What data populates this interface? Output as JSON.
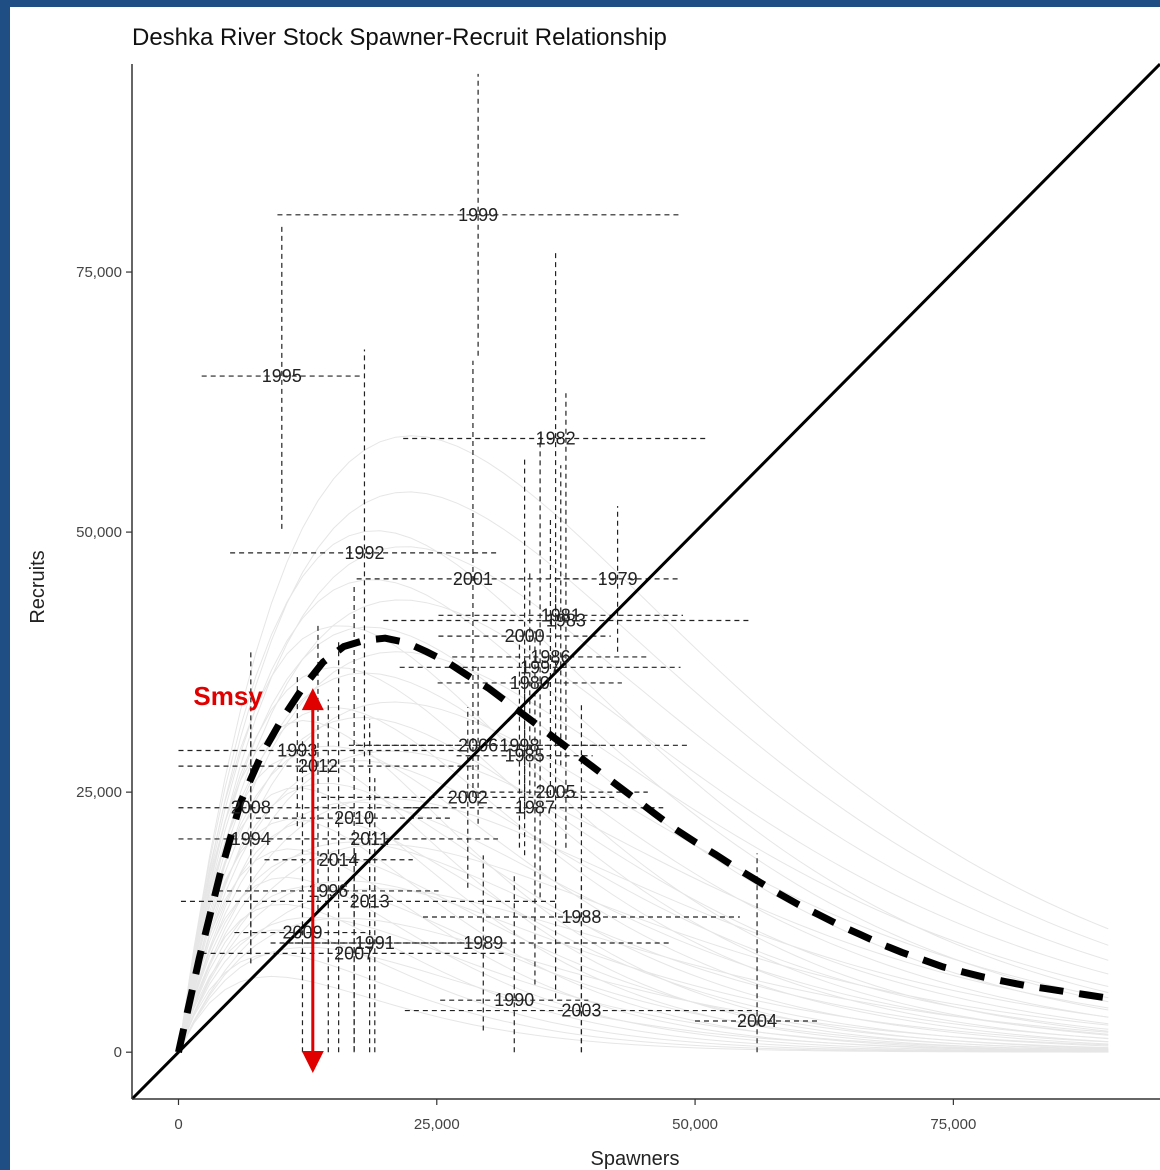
{
  "chart_data": {
    "type": "scatter",
    "title": "Deshka River Stock Spawner-Recruit Relationship",
    "xlabel": "Spawners",
    "ylabel": "Recruits",
    "xlim": [
      -4500,
      95000
    ],
    "ylim": [
      -4500,
      95000
    ],
    "x_ticks": [
      0,
      25000,
      50000,
      75000
    ],
    "x_tick_labels": [
      "0",
      "25,000",
      "50,000",
      "75,000"
    ],
    "y_ticks": [
      0,
      25000,
      50000,
      75000
    ],
    "y_tick_labels": [
      "0",
      "25,000",
      "50,000",
      "75,000"
    ],
    "grid": false,
    "replacement_line": {
      "label": "",
      "slope": 1
    },
    "median_curve": {
      "style": "dashed",
      "x": [
        0,
        2000,
        4000,
        6000,
        8000,
        10000,
        12000,
        14000,
        16000,
        18000,
        20000,
        22000,
        24000,
        26000,
        28000,
        30000,
        32000,
        34000,
        36000,
        38000,
        40000,
        42000,
        44000,
        46000,
        48000,
        50000,
        52000,
        54000,
        56000,
        58000,
        60000,
        62000,
        64000,
        66000,
        68000,
        70000,
        72000,
        74000,
        76000,
        78000,
        80000,
        82000,
        84000,
        86000,
        88000,
        90000
      ],
      "y": [
        0,
        9000,
        17000,
        24000,
        28500,
        32000,
        35000,
        37500,
        39000,
        39600,
        39800,
        39400,
        38500,
        37500,
        36200,
        35000,
        33500,
        32000,
        30500,
        29000,
        27500,
        26000,
        24500,
        23000,
        21500,
        20200,
        19000,
        17700,
        16500,
        15300,
        14200,
        13200,
        12200,
        11300,
        10400,
        9600,
        8900,
        8200,
        7700,
        7200,
        6800,
        6400,
        6100,
        5800,
        5500,
        5200
      ]
    },
    "points": [
      {
        "year": "1979",
        "x": 42500,
        "y": 45500
      },
      {
        "year": "1980",
        "x": 34000,
        "y": 35500
      },
      {
        "year": "1981",
        "x": 37000,
        "y": 42000
      },
      {
        "year": "1982",
        "x": 36500,
        "y": 59000
      },
      {
        "year": "1983",
        "x": 37500,
        "y": 41500
      },
      {
        "year": "1985",
        "x": 33500,
        "y": 28500
      },
      {
        "year": "1986",
        "x": 36000,
        "y": 38000
      },
      {
        "year": "1987",
        "x": 34500,
        "y": 23500
      },
      {
        "year": "1988",
        "x": 39000,
        "y": 13000
      },
      {
        "year": "1989",
        "x": 29500,
        "y": 10500
      },
      {
        "year": "1990",
        "x": 32500,
        "y": 5000
      },
      {
        "year": "1991",
        "x": 19000,
        "y": 10500
      },
      {
        "year": "1992",
        "x": 18000,
        "y": 48000
      },
      {
        "year": "1993",
        "x": 11500,
        "y": 29000
      },
      {
        "year": "1994",
        "x": 7000,
        "y": 20500
      },
      {
        "year": "1995",
        "x": 10000,
        "y": 65000
      },
      {
        "year": "1996",
        "x": 14500,
        "y": 15500
      },
      {
        "year": "1997",
        "x": 35000,
        "y": 37000
      },
      {
        "year": "1998",
        "x": 33000,
        "y": 29500
      },
      {
        "year": "1999",
        "x": 29000,
        "y": 80500
      },
      {
        "year": "2000",
        "x": 33500,
        "y": 40000
      },
      {
        "year": "2001",
        "x": 28500,
        "y": 45500
      },
      {
        "year": "2002",
        "x": 28000,
        "y": 24500
      },
      {
        "year": "2003",
        "x": 39000,
        "y": 4000
      },
      {
        "year": "2004",
        "x": 56000,
        "y": 3000
      },
      {
        "year": "2005",
        "x": 36500,
        "y": 25000
      },
      {
        "year": "2006",
        "x": 29000,
        "y": 29500
      },
      {
        "year": "2007",
        "x": 17000,
        "y": 9500
      },
      {
        "year": "2008",
        "x": 7000,
        "y": 23500
      },
      {
        "year": "2009",
        "x": 12000,
        "y": 11500
      },
      {
        "year": "2010",
        "x": 17000,
        "y": 22500
      },
      {
        "year": "2011",
        "x": 18500,
        "y": 20500
      },
      {
        "year": "2012",
        "x": 13500,
        "y": 27500
      },
      {
        "year": "2013",
        "x": 18500,
        "y": 14500
      },
      {
        "year": "2014",
        "x": 15500,
        "y": 18500
      }
    ],
    "annotations": [
      {
        "text": "Smsy",
        "color": "#e00000",
        "x": 13000,
        "y_range": [
          -2000,
          35000
        ]
      }
    ]
  }
}
